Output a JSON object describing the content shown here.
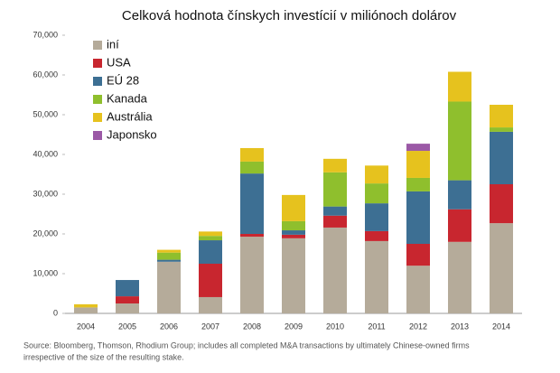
{
  "chart_data": {
    "type": "stacked-bar",
    "title": "Celková hodnota čínskych investícií v miliónoch dolárov",
    "categories": [
      "2004",
      "2005",
      "2006",
      "2007",
      "2008",
      "2009",
      "2010",
      "2011",
      "2012",
      "2013",
      "2014"
    ],
    "series": [
      {
        "name": "iní",
        "color": "#b5ab9a",
        "values": [
          1500,
          2500,
          13000,
          4100,
          19300,
          18900,
          21600,
          18200,
          12000,
          18000,
          22700
        ]
      },
      {
        "name": "USA",
        "color": "#c8262f",
        "values": [
          0,
          1800,
          0,
          8400,
          700,
          900,
          3000,
          2500,
          5500,
          8200,
          9800
        ]
      },
      {
        "name": "EÚ 28",
        "color": "#3d6f93",
        "values": [
          0,
          4100,
          500,
          5900,
          15200,
          1100,
          2300,
          7000,
          13200,
          7300,
          13200
        ]
      },
      {
        "name": "Kanada",
        "color": "#8fbf2d",
        "values": [
          0,
          0,
          1800,
          1100,
          3000,
          2300,
          8600,
          5000,
          3400,
          19800,
          1100
        ]
      },
      {
        "name": "Austrália",
        "color": "#e6c21e",
        "values": [
          800,
          0,
          700,
          1100,
          3400,
          6600,
          3400,
          4500,
          6800,
          7500,
          5700
        ]
      },
      {
        "name": "Japonsko",
        "color": "#9b59a6",
        "values": [
          0,
          0,
          0,
          0,
          0,
          0,
          0,
          0,
          1800,
          0,
          0
        ]
      }
    ],
    "ylim": [
      0,
      70000
    ],
    "yticks": [
      0,
      {
        "value": 10000,
        "label": "10,000"
      },
      {
        "value": 20000,
        "label": "20,000"
      },
      {
        "value": 30000,
        "label": "30,000"
      },
      {
        "value": 40000,
        "label": "40,000"
      },
      {
        "value": 50000,
        "label": "50,000"
      },
      {
        "value": 60000,
        "label": "60,000"
      },
      {
        "value": 70000,
        "label": "70,000"
      }
    ],
    "grid": false,
    "legend": "top-left",
    "source": [
      "Source: Bloomberg, Thomson, Rhodium Group; includes all completed M&A transactions by ultimately Chinese-owned firms",
      "irrespective of the size of the resulting stake."
    ]
  }
}
